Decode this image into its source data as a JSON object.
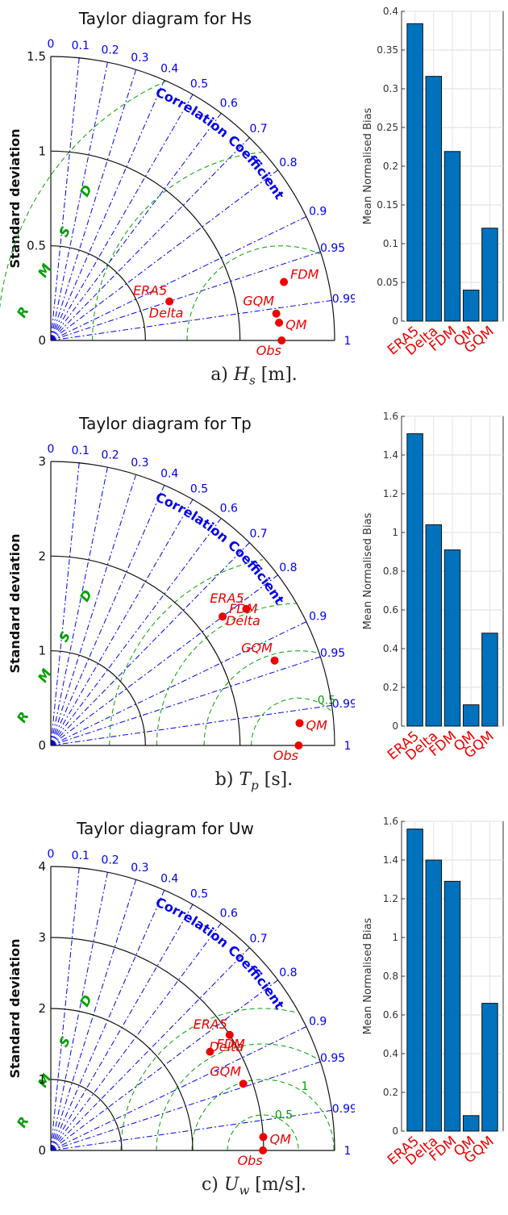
{
  "chart_data": [
    {
      "type": "taylor",
      "title": "Taylor diagram for Hs",
      "ylabel": "Standard deviation",
      "radial_ticks": [
        "0",
        "0.5",
        "1",
        "1.5"
      ],
      "std_max": 1.5,
      "std_circles": [
        0.5,
        1.0,
        1.5
      ],
      "corr_label": "Correlation Coefficient",
      "corr_ticks": [
        0,
        0.1,
        0.2,
        0.3,
        0.4,
        0.5,
        0.6,
        0.7,
        0.8,
        0.9,
        0.95,
        0.99,
        1
      ],
      "rmsd_label": "RMSD",
      "rmsd_levels": [
        0.5,
        1,
        1.5
      ],
      "obs_std": 1.22,
      "points": [
        {
          "name": "ERA5",
          "std": 0.66,
          "corr": 0.95
        },
        {
          "name": "Delta",
          "std": 0.66,
          "corr": 0.95
        },
        {
          "name": "FDM",
          "std": 1.27,
          "corr": 0.97
        },
        {
          "name": "GQM",
          "std": 1.2,
          "corr": 0.993
        },
        {
          "name": "QM",
          "std": 1.21,
          "corr": 0.997
        },
        {
          "name": "Obs",
          "std": 1.22,
          "corr": 1.0
        }
      ],
      "corr_color": "#0000ee",
      "rmsd_color": "#00a000",
      "point_color": "#ee0000"
    },
    {
      "type": "taylor",
      "title": "Taylor diagram for Tp",
      "ylabel": "Standard deviation",
      "radial_ticks": [
        "0",
        "1",
        "2",
        "3"
      ],
      "std_max": 3,
      "std_circles": [
        1,
        2,
        3
      ],
      "corr_label": "Correlation Coefficient",
      "corr_ticks": [
        0,
        0.1,
        0.2,
        0.3,
        0.4,
        0.5,
        0.6,
        0.7,
        0.8,
        0.9,
        0.95,
        0.99,
        1
      ],
      "rmsd_label": "RMSD",
      "rmsd_levels": [
        0.5,
        1,
        1.5,
        2
      ],
      "obs_std": 2.62,
      "points": [
        {
          "name": "ERA5",
          "std": 2.52,
          "corr": 0.82
        },
        {
          "name": "Delta",
          "std": 2.52,
          "corr": 0.82
        },
        {
          "name": "FDM",
          "std": 2.27,
          "corr": 0.8
        },
        {
          "name": "GQM",
          "std": 2.53,
          "corr": 0.935
        },
        {
          "name": "QM",
          "std": 2.64,
          "corr": 0.996
        },
        {
          "name": "Obs",
          "std": 2.62,
          "corr": 1.0
        }
      ],
      "corr_color": "#0000ee",
      "rmsd_color": "#00a000",
      "point_color": "#ee0000"
    },
    {
      "type": "taylor",
      "title": "Taylor diagram for Uw",
      "ylabel": "Standard deviation",
      "radial_ticks": [
        "0",
        "1",
        "2",
        "3",
        "4"
      ],
      "std_max": 4,
      "std_circles": [
        1,
        2,
        3,
        4
      ],
      "corr_label": "Correlation Coefficient",
      "corr_ticks": [
        0,
        0.1,
        0.2,
        0.3,
        0.4,
        0.5,
        0.6,
        0.7,
        0.8,
        0.9,
        0.95,
        0.99,
        1
      ],
      "rmsd_label": "RMSD",
      "rmsd_levels": [
        0.5,
        1,
        1.5,
        2
      ],
      "obs_std": 2.99,
      "points": [
        {
          "name": "ERA5",
          "std": 3.0,
          "corr": 0.84
        },
        {
          "name": "Delta",
          "std": 3.0,
          "corr": 0.84
        },
        {
          "name": "FDM",
          "std": 2.64,
          "corr": 0.85
        },
        {
          "name": "GQM",
          "std": 2.87,
          "corr": 0.945
        },
        {
          "name": "QM",
          "std": 3.0,
          "corr": 0.998
        },
        {
          "name": "Obs",
          "std": 2.99,
          "corr": 1.0
        }
      ],
      "corr_color": "#0000ee",
      "rmsd_color": "#00a000",
      "point_color": "#ee0000"
    },
    {
      "type": "bar",
      "ylabel": "Mean Normalised Bias",
      "categories": [
        "ERA5",
        "Delta",
        "FDM",
        "QM",
        "GQM"
      ],
      "values": [
        0.384,
        0.316,
        0.219,
        0.04,
        0.12
      ],
      "ylim": [
        0,
        0.4
      ],
      "yticks": [
        "0",
        "0.05",
        "0.1",
        "0.15",
        "0.2",
        "0.25",
        "0.3",
        "0.35",
        "0.4"
      ],
      "bar_color": "#0072bd",
      "label_color": "#ee0000"
    },
    {
      "type": "bar",
      "ylabel": "Mean Normalised Bias",
      "categories": [
        "ERA5",
        "Delta",
        "FDM",
        "QM",
        "GQM"
      ],
      "values": [
        1.51,
        1.04,
        0.91,
        0.11,
        0.48
      ],
      "ylim": [
        0,
        1.6
      ],
      "yticks": [
        "0",
        "0.2",
        "0.4",
        "0.6",
        "0.8",
        "1",
        "1.2",
        "1.4",
        "1.6"
      ],
      "bar_color": "#0072bd",
      "label_color": "#ee0000"
    },
    {
      "type": "bar",
      "ylabel": "Mean Normalised Bias",
      "categories": [
        "ERA5",
        "Delta",
        "FDM",
        "QM",
        "GQM"
      ],
      "values": [
        1.56,
        1.4,
        1.29,
        0.08,
        0.66
      ],
      "ylim": [
        0,
        1.6
      ],
      "yticks": [
        "0",
        "0.2",
        "0.4",
        "0.6",
        "0.8",
        "1",
        "1.2",
        "1.4",
        "1.6"
      ],
      "bar_color": "#0072bd",
      "label_color": "#ee0000"
    }
  ],
  "captions": [
    {
      "prefix": "a) ",
      "sym": "H",
      "sub": "s",
      "unit": " [m]."
    },
    {
      "prefix": "b) ",
      "sym": "T",
      "sub": "p",
      "unit": " [s]."
    },
    {
      "prefix": "c) ",
      "sym": "U",
      "sub": "w",
      "unit": " [m/s]."
    }
  ]
}
